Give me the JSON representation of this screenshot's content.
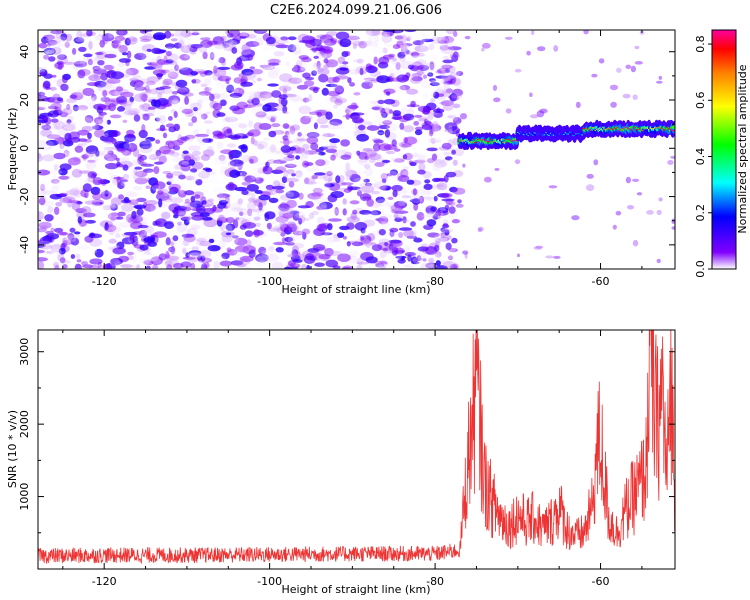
{
  "figure_title": "C2E6.2024.099.21.06.G06",
  "chart_data": [
    {
      "type": "heatmap",
      "title": "",
      "xlabel": "Height of straight line (km)",
      "ylabel": "Frequency (Hz)",
      "xlim": [
        -128,
        -51
      ],
      "ylim": [
        -50,
        49
      ],
      "xticks": [
        -120,
        -100,
        -80,
        -60
      ],
      "yticks": [
        -40,
        -20,
        0,
        20,
        40
      ],
      "grid": false,
      "colorbar": {
        "label": "Normalized spectral amplitude",
        "range": [
          0.0,
          0.85
        ],
        "ticks": [
          0.0,
          0.2,
          0.4,
          0.6,
          0.8
        ],
        "colors": [
          "#ffffff",
          "#8000ff",
          "#0000ff",
          "#00ffff",
          "#00ff00",
          "#ffff00",
          "#ff8000",
          "#ff0000",
          "#ff00a0"
        ]
      },
      "description_regions": [
        {
          "x_range": [
            -128,
            -77
          ],
          "frequency_range": [
            -50,
            49
          ],
          "amplitude_range": [
            0.0,
            0.15
          ]
        },
        {
          "x_range": [
            -77,
            -51
          ],
          "frequency_range": [
            0,
            10
          ],
          "amplitude_range": [
            0.1,
            0.85
          ]
        }
      ]
    },
    {
      "type": "line",
      "title": "",
      "xlabel": "Height of straight line (km)",
      "ylabel": "SNR (10 * v/v)",
      "xlim": [
        -128,
        -51
      ],
      "ylim": [
        0,
        3300
      ],
      "xticks": [
        -120,
        -100,
        -80,
        -60
      ],
      "yticks": [
        1000,
        2000,
        3000
      ],
      "grid": false,
      "color": "#ee3333",
      "series": [
        {
          "x": [
            -128,
            -120,
            -110,
            -100,
            -90,
            -80,
            -77,
            -76.5,
            -76,
            -75.5,
            -75,
            -74,
            -73,
            -72,
            -71,
            -70,
            -69,
            -68,
            -67,
            -66,
            -65,
            -64,
            -63,
            -62,
            -61,
            -60.5,
            -60,
            -59.5,
            -59,
            -58,
            -57,
            -56,
            -55,
            -54.5,
            -54,
            -53.5,
            -53,
            -52.5,
            -52,
            -51.5,
            -51
          ],
          "y": [
            180,
            190,
            190,
            200,
            210,
            210,
            260,
            900,
            1500,
            2000,
            2550,
            1200,
            900,
            700,
            600,
            750,
            650,
            700,
            550,
            650,
            850,
            550,
            450,
            500,
            850,
            1550,
            1800,
            1200,
            700,
            500,
            800,
            1000,
            1200,
            1400,
            3250,
            2200,
            2000,
            2500,
            1200,
            2700,
            950
          ]
        }
      ]
    }
  ]
}
